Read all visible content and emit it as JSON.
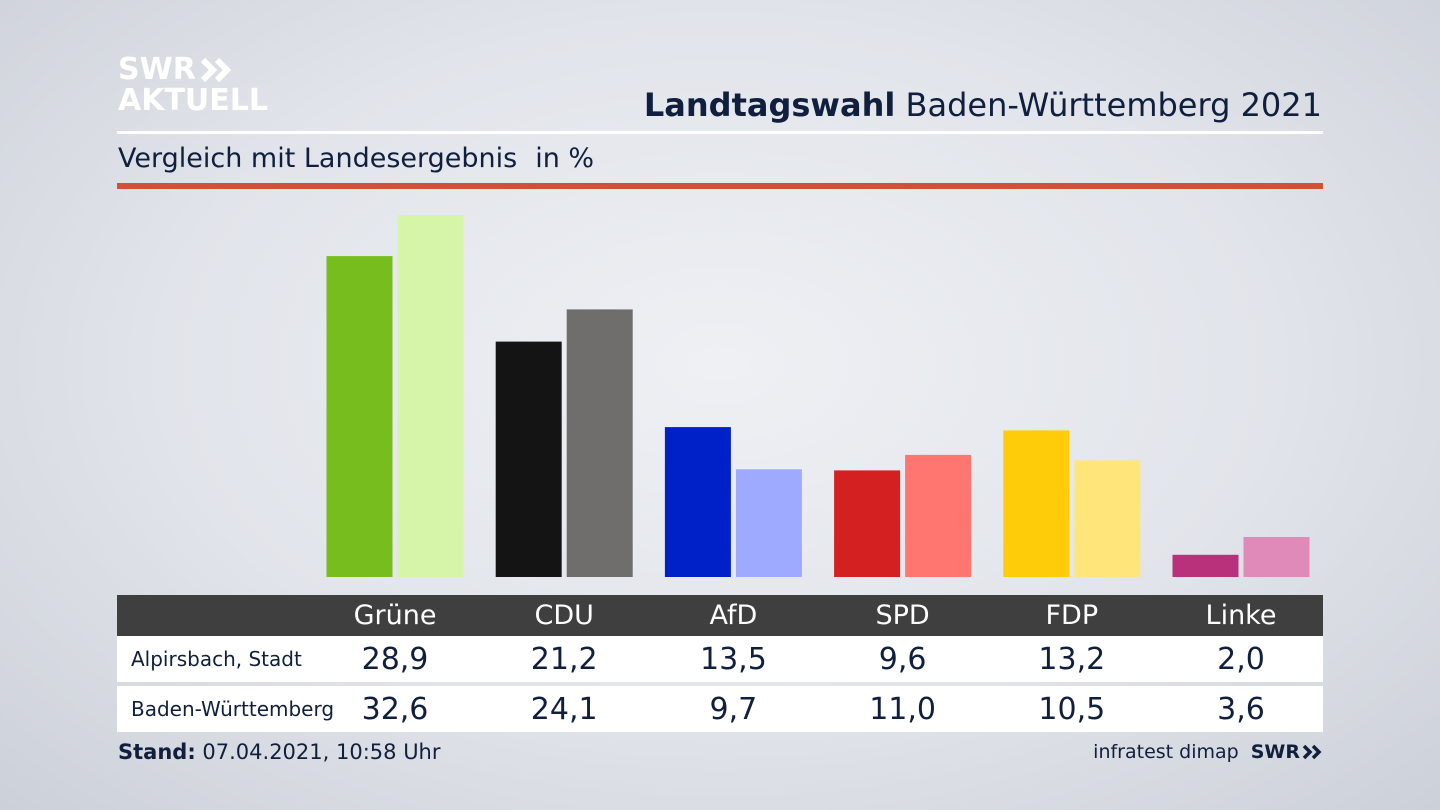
{
  "logo": {
    "line1": "SWR",
    "line2": "AKTUELL"
  },
  "header": {
    "title_bold": "Landtagswahl",
    "title_rest": "Baden-Württemberg 2021"
  },
  "subheader": {
    "text": "Vergleich mit Landesergebnis",
    "unit": "in %"
  },
  "colors": {
    "accent_line": "#d0503a",
    "table_header": "#3f3f3f"
  },
  "chart_data": {
    "type": "bar",
    "categories": [
      "Grüne",
      "CDU",
      "AfD",
      "SPD",
      "FDP",
      "Linke"
    ],
    "series": [
      {
        "name": "Alpirsbach, Stadt",
        "values": [
          28.9,
          21.2,
          13.5,
          9.6,
          13.2,
          2.0
        ],
        "display": [
          "28,9",
          "21,2",
          "13,5",
          "9,6",
          "13,2",
          "2,0"
        ],
        "colors": [
          "#78bd1e",
          "#141414",
          "#0020c8",
          "#d42020",
          "#ffcc0a",
          "#b8317a"
        ]
      },
      {
        "name": "Baden-Württemberg",
        "values": [
          32.6,
          24.1,
          9.7,
          11.0,
          10.5,
          3.6
        ],
        "display": [
          "32,6",
          "24,1",
          "9,7",
          "11,0",
          "10,5",
          "3,6"
        ],
        "colors": [
          "#d6f5a8",
          "#6f6e6c",
          "#9eaaff",
          "#ff7670",
          "#ffe57a",
          "#df8ab8"
        ]
      }
    ],
    "ylim": [
      0,
      32.6
    ]
  },
  "footer": {
    "stand_label": "Stand:",
    "stand_value": "07.04.2021, 10:58 Uhr",
    "source": "infratest dimap",
    "brand": "SWR"
  }
}
